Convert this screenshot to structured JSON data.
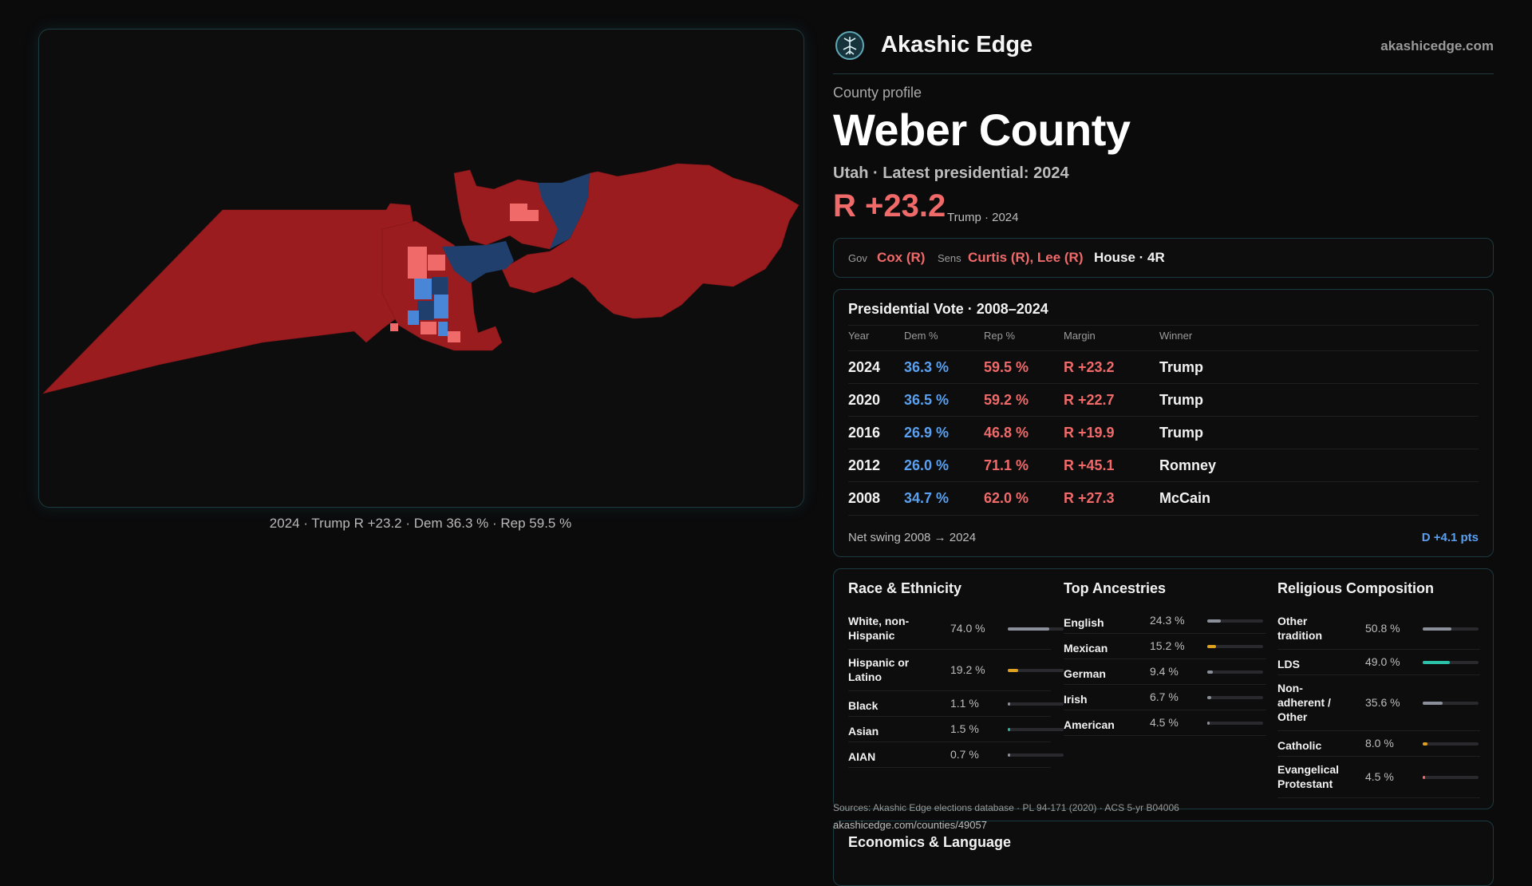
{
  "map": {
    "caption": "2024 · Trump R +23.2 · Dem 36.3 % · Rep 59.5 %",
    "colors": {
      "rep": "#9b1c1f",
      "rep_light": "#f06a6a",
      "dem_dark": "#213f6d",
      "dem_light": "#4a86d8"
    }
  },
  "header": {
    "brand": "Akashic Edge",
    "site": "akashicedge.com",
    "logo_icon": "tree-icon"
  },
  "profile": {
    "eyebrow": "County profile",
    "county": "Weber County",
    "subline": "Utah · Latest presidential: 2024",
    "margin": "R +23.2",
    "margin_note": "Trump · 2024"
  },
  "offices": {
    "gov_label": "Gov",
    "gov_value": "Cox (R)",
    "sens_label": "Sens",
    "sens_value": "Curtis (R), Lee (R)",
    "house": "House · 4R"
  },
  "presidential": {
    "title": "Presidential Vote · 2008–2024",
    "columns": [
      "Year",
      "Dem %",
      "Rep %",
      "Margin",
      "Winner"
    ],
    "rows": [
      {
        "year": "2024",
        "dem": "36.3 %",
        "rep": "59.5 %",
        "margin": "R +23.2",
        "winner": "Trump"
      },
      {
        "year": "2020",
        "dem": "36.5 %",
        "rep": "59.2 %",
        "margin": "R +22.7",
        "winner": "Trump"
      },
      {
        "year": "2016",
        "dem": "26.9 %",
        "rep": "46.8 %",
        "margin": "R +19.9",
        "winner": "Trump"
      },
      {
        "year": "2012",
        "dem": "26.0 %",
        "rep": "71.1 %",
        "margin": "R +45.1",
        "winner": "Romney"
      },
      {
        "year": "2008",
        "dem": "34.7 %",
        "rep": "62.0 %",
        "margin": "R +27.3",
        "winner": "McCain"
      }
    ],
    "swing_label": "Net swing 2008 → 2024",
    "swing_value": "D +4.1 pts"
  },
  "race": {
    "title": "Race & Ethnicity",
    "items": [
      {
        "name": "White, non-Hispanic",
        "pct": "74.0 %",
        "value": 74.0,
        "color": "#8a8f99"
      },
      {
        "name": "Hispanic or Latino",
        "pct": "19.2 %",
        "value": 19.2,
        "color": "#e0a020"
      },
      {
        "name": "Black",
        "pct": "1.1 %",
        "value": 1.1,
        "color": "#8a8f99"
      },
      {
        "name": "Asian",
        "pct": "1.5 %",
        "value": 1.5,
        "color": "#2bb5a0"
      },
      {
        "name": "AIAN",
        "pct": "0.7 %",
        "value": 0.7,
        "color": "#8a8f99"
      }
    ]
  },
  "ancestry": {
    "title": "Top Ancestries",
    "items": [
      {
        "name": "English",
        "pct": "24.3 %",
        "value": 24.3,
        "color": "#8a8f99"
      },
      {
        "name": "Mexican",
        "pct": "15.2 %",
        "value": 15.2,
        "color": "#e0a020"
      },
      {
        "name": "German",
        "pct": "9.4 %",
        "value": 9.4,
        "color": "#8a8f99"
      },
      {
        "name": "Irish",
        "pct": "6.7 %",
        "value": 6.7,
        "color": "#8a8f99"
      },
      {
        "name": "American",
        "pct": "4.5 %",
        "value": 4.5,
        "color": "#8a8f99"
      }
    ]
  },
  "religion": {
    "title": "Religious Composition",
    "items": [
      {
        "name": "Other tradition",
        "pct": "50.8 %",
        "value": 50.8,
        "color": "#8a8f99"
      },
      {
        "name": "LDS",
        "pct": "49.0 %",
        "value": 49.0,
        "color": "#2bc0a8"
      },
      {
        "name": "Non-adherent / Other",
        "pct": "35.6 %",
        "value": 35.6,
        "color": "#8a8f99"
      },
      {
        "name": "Catholic",
        "pct": "8.0 %",
        "value": 8.0,
        "color": "#e0a020"
      },
      {
        "name": "Evangelical Protestant",
        "pct": "4.5 %",
        "value": 4.5,
        "color": "#f06a6a"
      }
    ]
  },
  "footer": {
    "sources": "Sources: Akashic Edge elections database · PL 94-171 (2020) · ACS 5-yr B04006",
    "url": "akashicedge.com/counties/49057"
  },
  "economics": {
    "title": "Economics & Language"
  }
}
